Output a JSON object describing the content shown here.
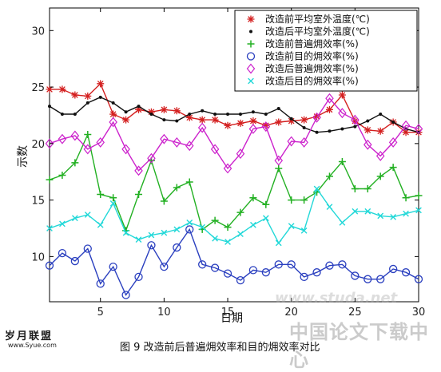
{
  "chart_data": {
    "type": "line",
    "xlabel": "日期",
    "ylabel": "示数",
    "xlim": [
      1,
      30
    ],
    "ylim": [
      6,
      32
    ],
    "xticks": [
      5,
      10,
      15,
      20,
      25,
      30
    ],
    "yticks": [
      10,
      15,
      20,
      25,
      30
    ],
    "x": [
      1,
      2,
      3,
      4,
      5,
      6,
      7,
      8,
      9,
      10,
      11,
      12,
      13,
      14,
      15,
      16,
      17,
      18,
      19,
      20,
      21,
      22,
      23,
      24,
      25,
      26,
      27,
      28,
      29,
      30
    ],
    "legend_position": "top-right",
    "series": [
      {
        "name": "改造前平均室外温度(℃)",
        "color": "#d42020",
        "marker": "star",
        "values": [
          24.8,
          24.8,
          24.3,
          24.2,
          25.3,
          22.6,
          22.1,
          23.0,
          22.8,
          23.0,
          22.9,
          22.3,
          22.1,
          22.1,
          21.6,
          21.8,
          22.0,
          21.6,
          21.9,
          22.0,
          22.1,
          22.4,
          23.0,
          24.3,
          22.0,
          21.2,
          21.1,
          21.9,
          21.0,
          21.0
        ]
      },
      {
        "name": "改造后平均室外温度(℃)",
        "color": "#111111",
        "marker": "dot",
        "values": [
          23.3,
          22.6,
          22.6,
          23.6,
          24.1,
          23.6,
          22.8,
          23.3,
          22.6,
          22.1,
          22.0,
          22.6,
          22.9,
          22.6,
          22.6,
          22.6,
          22.8,
          22.6,
          23.1,
          22.2,
          21.4,
          21.0,
          21.1,
          21.3,
          21.5,
          22.0,
          22.6,
          21.9,
          21.3,
          21.0
        ]
      },
      {
        "name": "改造前普遍㶲效率(%)",
        "color": "#22b022",
        "marker": "plus",
        "values": [
          16.8,
          17.2,
          18.3,
          20.8,
          15.5,
          15.2,
          12.3,
          15.5,
          18.5,
          14.9,
          16.1,
          16.6,
          12.4,
          13.2,
          12.6,
          13.9,
          15.2,
          14.6,
          17.8,
          15.0,
          15.0,
          15.7,
          17.1,
          18.4,
          16.0,
          16.0,
          17.1,
          17.9,
          15.2,
          15.4
        ]
      },
      {
        "name": "改造前目的㶲效率(%)",
        "color": "#2a3fbf",
        "marker": "circle",
        "values": [
          9.2,
          10.3,
          9.6,
          10.7,
          7.6,
          9.1,
          6.6,
          8.2,
          11.0,
          9.1,
          10.8,
          12.4,
          9.3,
          9.0,
          8.5,
          7.9,
          8.8,
          8.6,
          9.3,
          9.3,
          8.2,
          8.6,
          9.2,
          9.3,
          8.3,
          8.0,
          8.0,
          8.9,
          8.6,
          8.0
        ]
      },
      {
        "name": "改造后普遍㶲效率(%)",
        "color": "#cc22cc",
        "marker": "diamond",
        "values": [
          20.0,
          20.4,
          20.7,
          19.5,
          20.1,
          21.9,
          19.5,
          17.6,
          18.7,
          20.4,
          20.1,
          19.8,
          21.4,
          19.5,
          17.8,
          19.1,
          21.3,
          21.5,
          18.5,
          20.2,
          20.1,
          22.3,
          24.0,
          22.7,
          22.1,
          19.9,
          18.9,
          20.1,
          21.6,
          21.3
        ]
      },
      {
        "name": "改造后目的㶲效率(%)",
        "color": "#22d8d8",
        "marker": "x",
        "values": [
          12.5,
          12.9,
          13.4,
          13.7,
          12.8,
          14.7,
          12.1,
          11.5,
          11.9,
          12.1,
          12.4,
          13.0,
          12.6,
          11.6,
          11.3,
          12.0,
          12.8,
          13.4,
          11.2,
          12.7,
          12.3,
          16.0,
          14.4,
          13.0,
          14.0,
          14.0,
          13.6,
          13.5,
          13.8,
          14.1
        ]
      }
    ]
  },
  "caption": "图 9  改造前后普遍㶲效率和目的㶲效率对比",
  "watermark": {
    "brand": "岁月联盟",
    "site": "www.Syue.com",
    "right_text": "中国论文下载中心",
    "url_text": "www.studa.net"
  }
}
